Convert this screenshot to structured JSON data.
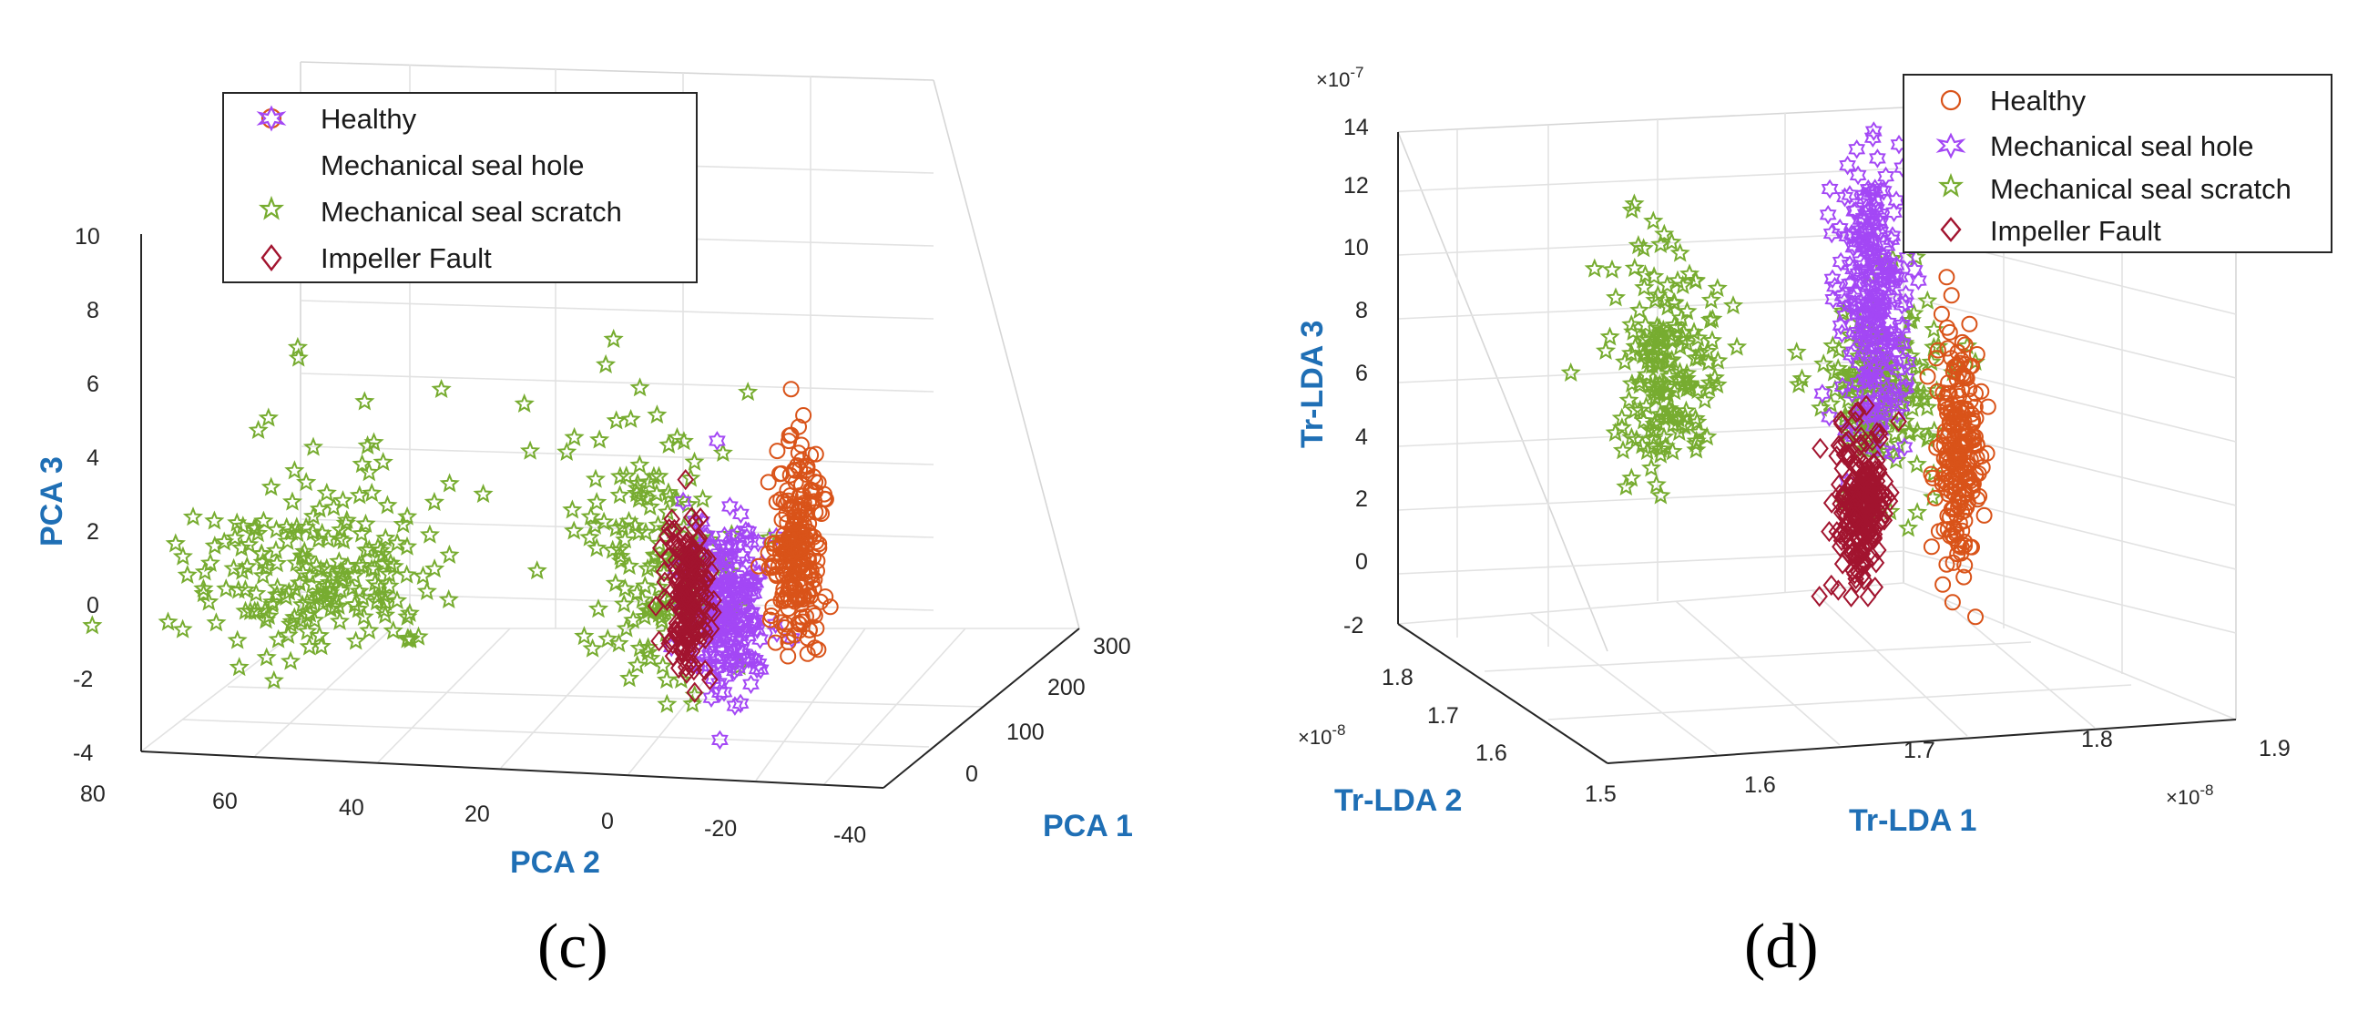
{
  "figure_labels": {
    "c": "(c)",
    "d": "(d)"
  },
  "chart_data": [
    {
      "id": "c",
      "type": "scatter",
      "subtype": "3d-scatter",
      "title": "",
      "xlabel": "PCA 1",
      "ylabel": "PCA 2",
      "zlabel": "PCA 3",
      "x_ticks": [
        "0",
        "100",
        "200",
        "300"
      ],
      "y_ticks": [
        "80",
        "60",
        "40",
        "20",
        "0",
        "-20",
        "-40"
      ],
      "z_ticks": [
        "-4",
        "-2",
        "0",
        "2",
        "4",
        "6",
        "8",
        "10"
      ],
      "xlim": [
        -50,
        320
      ],
      "ylim": [
        -40,
        80
      ],
      "zlim": [
        -4,
        10
      ],
      "grid": true,
      "legend_position": "top-left",
      "series": [
        {
          "name": "Healthy",
          "marker": "circle",
          "color": "#d95319",
          "approx_center": {
            "PCA 1": 260,
            "PCA 2": -30,
            "PCA 3": 0
          }
        },
        {
          "name": "Mechanical seal hole",
          "marker": "hexagram",
          "color": "#a347f5",
          "approx_center": {
            "PCA 1": 130,
            "PCA 2": -15,
            "PCA 3": -1
          }
        },
        {
          "name": "Mechanical seal scratch",
          "marker": "pentagram",
          "color": "#77ac30",
          "approx_center": {
            "PCA 1": 40,
            "PCA 2": 40,
            "PCA 3": 1
          }
        },
        {
          "name": "Impeller Fault",
          "marker": "diamond",
          "color": "#a2142f",
          "approx_center": {
            "PCA 1": 120,
            "PCA 2": -5,
            "PCA 3": 0
          }
        }
      ]
    },
    {
      "id": "d",
      "type": "scatter",
      "subtype": "3d-scatter",
      "title": "",
      "xlabel": "Tr-LDA 1",
      "ylabel": "Tr-LDA 2",
      "zlabel": "Tr-LDA 3",
      "x_ticks": [
        "1.5",
        "1.6",
        "1.7",
        "1.8",
        "1.9"
      ],
      "y_ticks": [
        "1.6",
        "1.7",
        "1.8"
      ],
      "z_ticks": [
        "-2",
        "0",
        "2",
        "4",
        "6",
        "8",
        "10",
        "12",
        "14"
      ],
      "x_exponent": "×10",
      "x_exponent_power": "-8",
      "y_exponent": "×10",
      "y_exponent_power": "-8",
      "z_exponent": "×10",
      "z_exponent_power": "-7",
      "xlim": [
        1.5e-08,
        1.9e-08
      ],
      "ylim": [
        1.55e-08,
        1.85e-08
      ],
      "zlim": [
        -2e-07,
        1.4e-06
      ],
      "grid": true,
      "legend_position": "top-right",
      "series": [
        {
          "name": "Healthy",
          "marker": "circle",
          "color": "#d95319",
          "approx_center": {
            "Tr-LDA 1": 1.75e-08,
            "Tr-LDA 2": 1.7e-08,
            "Tr-LDA 3": 3e-07
          }
        },
        {
          "name": "Mechanical seal hole",
          "marker": "hexagram",
          "color": "#a347f5",
          "approx_center": {
            "Tr-LDA 1": 1.7e-08,
            "Tr-LDA 2": 1.7e-08,
            "Tr-LDA 3": 9e-07
          }
        },
        {
          "name": "Mechanical seal scratch",
          "marker": "pentagram",
          "color": "#77ac30",
          "approx_center": {
            "Tr-LDA 1": 1.62e-08,
            "Tr-LDA 2": 1.75e-08,
            "Tr-LDA 3": 6e-07
          }
        },
        {
          "name": "Impeller Fault",
          "marker": "diamond",
          "color": "#a2142f",
          "approx_center": {
            "Tr-LDA 1": 1.68e-08,
            "Tr-LDA 2": 1.7e-08,
            "Tr-LDA 3": 1e-07
          }
        }
      ]
    }
  ]
}
